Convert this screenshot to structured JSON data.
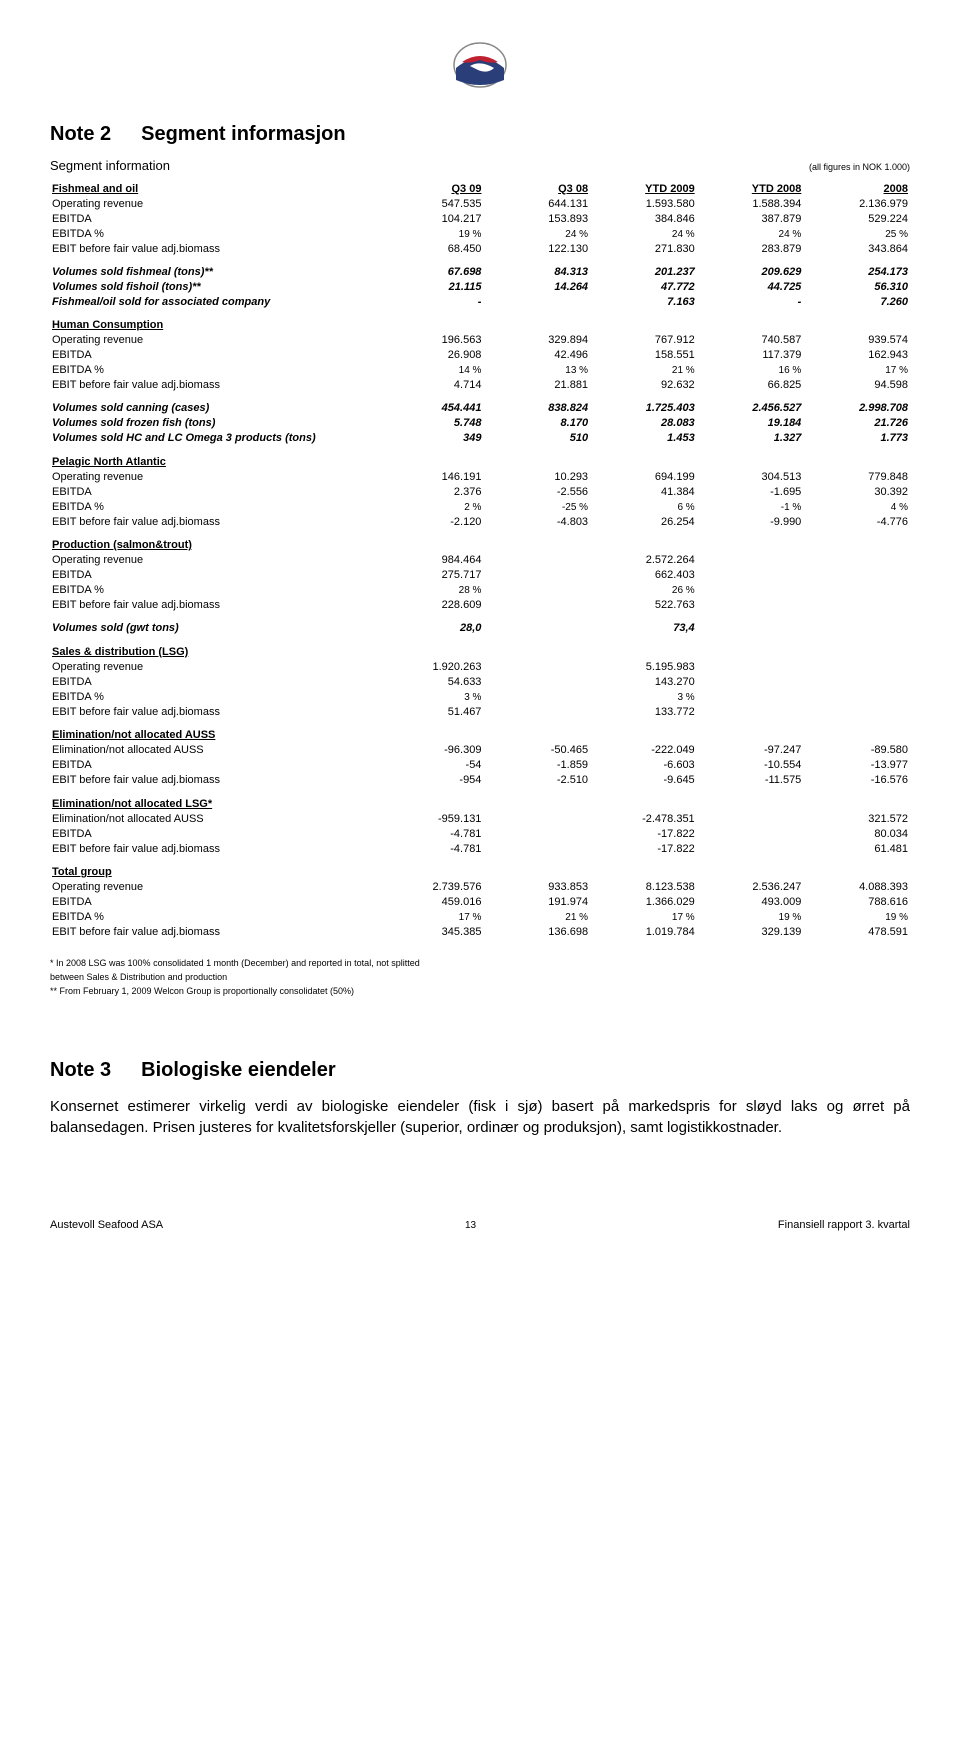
{
  "logo_colors": {
    "blue": "#2a3e7a",
    "red": "#c02030",
    "grey": "#888888"
  },
  "note2": {
    "num": "Note 2",
    "title": "Segment informasjon",
    "subtitle": "Segment information",
    "units": "(all figures in NOK 1.000)",
    "columns": [
      "Q3 09",
      "Q3 08",
      "YTD 2009",
      "YTD 2008",
      "2008"
    ],
    "sections": [
      {
        "head": "Fishmeal and oil",
        "underline": true,
        "rows": [
          {
            "lbl": "Operating revenue",
            "v": [
              "547.535",
              "644.131",
              "1.593.580",
              "1.588.394",
              "2.136.979"
            ]
          },
          {
            "lbl": "EBITDA",
            "v": [
              "104.217",
              "153.893",
              "384.846",
              "387.879",
              "529.224"
            ]
          },
          {
            "lbl": "EBITDA %",
            "v": [
              "19 %",
              "24 %",
              "24 %",
              "24 %",
              "25 %"
            ],
            "small": true
          },
          {
            "lbl": "EBIT before fair value adj.biomass",
            "v": [
              "68.450",
              "122.130",
              "271.830",
              "283.879",
              "343.864"
            ]
          }
        ],
        "italic_rows": [
          {
            "lbl": "Volumes sold fishmeal (tons)**",
            "v": [
              "67.698",
              "84.313",
              "201.237",
              "209.629",
              "254.173"
            ]
          },
          {
            "lbl": "Volumes sold fishoil (tons)**",
            "v": [
              "21.115",
              "14.264",
              "47.772",
              "44.725",
              "56.310"
            ]
          },
          {
            "lbl": "Fishmeal/oil sold for associated company",
            "v": [
              "-",
              "",
              "7.163",
              "-",
              "7.260"
            ]
          }
        ]
      },
      {
        "head": "Human Consumption",
        "rows": [
          {
            "lbl": "Operating revenue",
            "v": [
              "196.563",
              "329.894",
              "767.912",
              "740.587",
              "939.574"
            ]
          },
          {
            "lbl": "EBITDA",
            "v": [
              "26.908",
              "42.496",
              "158.551",
              "117.379",
              "162.943"
            ]
          },
          {
            "lbl": "EBITDA %",
            "v": [
              "14 %",
              "13 %",
              "21 %",
              "16 %",
              "17 %"
            ],
            "small": true
          },
          {
            "lbl": "EBIT before fair value adj.biomass",
            "v": [
              "4.714",
              "21.881",
              "92.632",
              "66.825",
              "94.598"
            ]
          }
        ],
        "italic_rows": [
          {
            "lbl": "Volumes sold canning (cases)",
            "v": [
              "454.441",
              "838.824",
              "1.725.403",
              "2.456.527",
              "2.998.708"
            ]
          },
          {
            "lbl": "Volumes sold frozen fish (tons)",
            "v": [
              "5.748",
              "8.170",
              "28.083",
              "19.184",
              "21.726"
            ]
          },
          {
            "lbl": "Volumes sold HC and LC Omega 3 products (tons)",
            "v": [
              "349",
              "510",
              "1.453",
              "1.327",
              "1.773"
            ]
          }
        ]
      },
      {
        "head": "Pelagic North Atlantic",
        "rows": [
          {
            "lbl": "Operating revenue",
            "v": [
              "146.191",
              "10.293",
              "694.199",
              "304.513",
              "779.848"
            ]
          },
          {
            "lbl": "EBITDA",
            "v": [
              "2.376",
              "-2.556",
              "41.384",
              "-1.695",
              "30.392"
            ]
          },
          {
            "lbl": "EBITDA %",
            "v": [
              "2 %",
              "-25 %",
              "6 %",
              "-1 %",
              "4 %"
            ],
            "small": true
          },
          {
            "lbl": "EBIT before fair value adj.biomass",
            "v": [
              "-2.120",
              "-4.803",
              "26.254",
              "-9.990",
              "-4.776"
            ]
          }
        ]
      },
      {
        "head": "Production (salmon&trout)",
        "rows": [
          {
            "lbl": "Operating revenue",
            "v": [
              "984.464",
              "",
              "2.572.264",
              "",
              ""
            ]
          },
          {
            "lbl": "EBITDA",
            "v": [
              "275.717",
              "",
              "662.403",
              "",
              ""
            ]
          },
          {
            "lbl": "EBITDA %",
            "v": [
              "28 %",
              "",
              "26 %",
              "",
              ""
            ],
            "small": true
          },
          {
            "lbl": "EBIT before fair value adj.biomass",
            "v": [
              "228.609",
              "",
              "522.763",
              "",
              ""
            ]
          }
        ],
        "italic_rows": [
          {
            "lbl": "Volumes sold (gwt tons)",
            "v": [
              "28,0",
              "",
              "73,4",
              "",
              ""
            ]
          }
        ]
      },
      {
        "head": "Sales & distribution (LSG)",
        "rows": [
          {
            "lbl": "Operating revenue",
            "v": [
              "1.920.263",
              "",
              "5.195.983",
              "",
              ""
            ]
          },
          {
            "lbl": "EBITDA",
            "v": [
              "54.633",
              "",
              "143.270",
              "",
              ""
            ]
          },
          {
            "lbl": "EBITDA %",
            "v": [
              "3 %",
              "",
              "3 %",
              "",
              ""
            ],
            "small": true
          },
          {
            "lbl": "EBIT before fair value adj.biomass",
            "v": [
              "51.467",
              "",
              "133.772",
              "",
              ""
            ]
          }
        ]
      },
      {
        "head": "Elimination/not allocated AUSS",
        "rows": [
          {
            "lbl": "Elimination/not allocated AUSS",
            "v": [
              "-96.309",
              "-50.465",
              "-222.049",
              "-97.247",
              "-89.580"
            ]
          },
          {
            "lbl": "EBITDA",
            "v": [
              "-54",
              "-1.859",
              "-6.603",
              "-10.554",
              "-13.977"
            ]
          },
          {
            "lbl": "EBIT before fair value adj.biomass",
            "v": [
              "-954",
              "-2.510",
              "-9.645",
              "-11.575",
              "-16.576"
            ]
          }
        ]
      },
      {
        "head": "Elimination/not allocated LSG*",
        "rows": [
          {
            "lbl": "Elimination/not allocated AUSS",
            "v": [
              "-959.131",
              "",
              "-2.478.351",
              "",
              "321.572"
            ]
          },
          {
            "lbl": "EBITDA",
            "v": [
              "-4.781",
              "",
              "-17.822",
              "",
              "80.034"
            ]
          },
          {
            "lbl": "EBIT before fair value adj.biomass",
            "v": [
              "-4.781",
              "",
              "-17.822",
              "",
              "61.481"
            ]
          }
        ]
      },
      {
        "head": "Total group",
        "rows": [
          {
            "lbl": "Operating revenue",
            "v": [
              "2.739.576",
              "933.853",
              "8.123.538",
              "2.536.247",
              "4.088.393"
            ]
          },
          {
            "lbl": "EBITDA",
            "v": [
              "459.016",
              "191.974",
              "1.366.029",
              "493.009",
              "788.616"
            ]
          },
          {
            "lbl": "EBITDA %",
            "v": [
              "17 %",
              "21 %",
              "17 %",
              "19 %",
              "19 %"
            ],
            "small": true
          },
          {
            "lbl": "EBIT before fair value adj.biomass",
            "v": [
              "345.385",
              "136.698",
              "1.019.784",
              "329.139",
              "478.591"
            ]
          }
        ]
      }
    ],
    "footnotes": [
      "* In 2008 LSG was 100% consolidated 1 month (December) and reported in total, not splitted",
      "  between Sales & Distribution and production",
      "** From February 1, 2009 Welcon Group is proportionally consolidatet (50%)"
    ]
  },
  "note3": {
    "num": "Note 3",
    "title": "Biologiske eiendeler",
    "body": "Konsernet estimerer virkelig verdi av biologiske eiendeler (fisk i sjø) basert på markedspris for sløyd laks og ørret på balansedagen. Prisen justeres for kvalitetsforskjeller (superior, ordinær og produksjon), samt logistikkostnader."
  },
  "footer": {
    "left": "Austevoll Seafood ASA",
    "page": "13",
    "right": "Finansiell rapport 3. kvartal"
  }
}
